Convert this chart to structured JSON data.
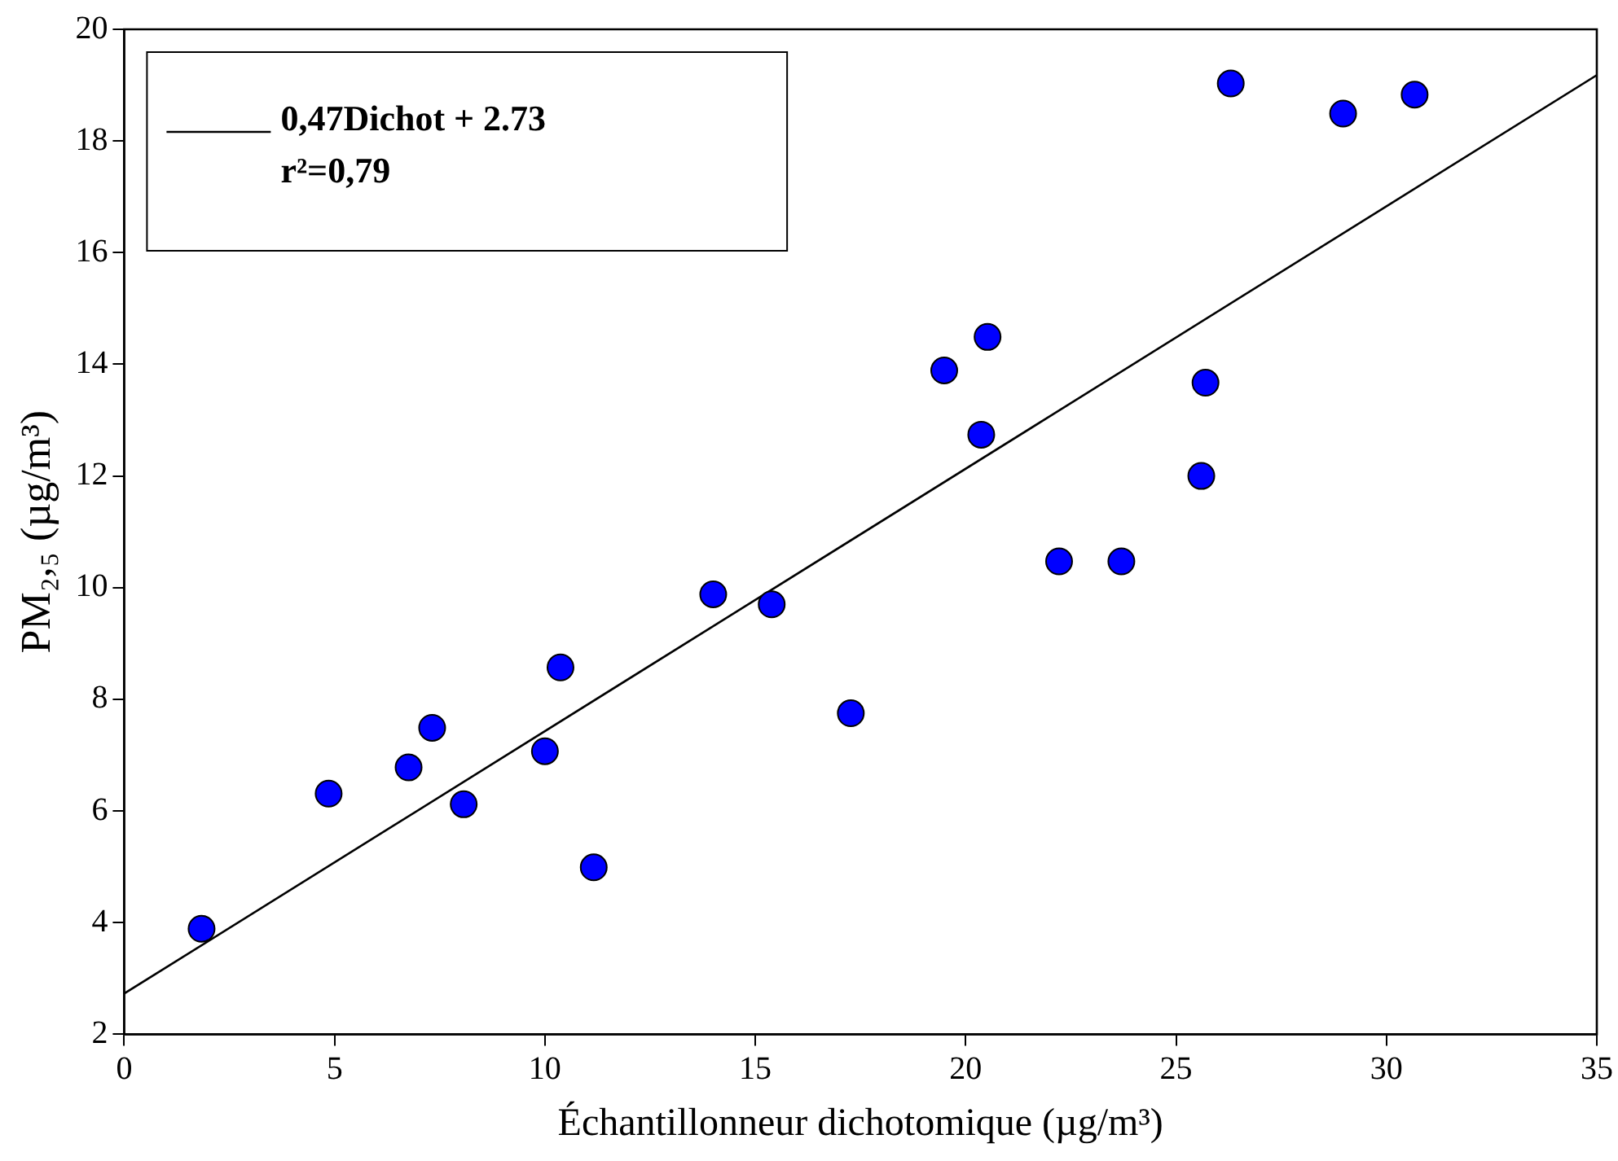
{
  "chart_data": {
    "type": "scatter",
    "xlabel": "Échantillonneur dichotomique (µg/m³)",
    "ylabel": "PM₂,₅ (µg/m³)",
    "xlim": [
      0,
      35
    ],
    "xticks": [
      0,
      5,
      10,
      15,
      20,
      25,
      30,
      35
    ],
    "ylim": [
      2,
      20
    ],
    "yticks": [
      2,
      4,
      6,
      8,
      10,
      12,
      14,
      16,
      18,
      20
    ],
    "grid": false,
    "legend": "top left",
    "marker": "circle",
    "annotations": [
      "r²=0,79"
    ],
    "series": [
      {
        "type": "scatter",
        "color": "#0000ff",
        "x": [
          1.84,
          4.86,
          6.76,
          7.32,
          8.07,
          10.0,
          10.37,
          11.16,
          14.0,
          15.39,
          17.27,
          19.49,
          20.37,
          20.52,
          22.22,
          23.7,
          25.6,
          25.7,
          26.3,
          28.97,
          30.67
        ],
        "values": [
          3.89,
          6.31,
          6.78,
          7.49,
          6.12,
          7.07,
          8.57,
          4.99,
          9.88,
          9.7,
          7.75,
          13.89,
          12.74,
          14.49,
          10.47,
          10.47,
          12.0,
          13.67,
          19.03,
          18.49,
          18.83
        ]
      },
      {
        "type": "line",
        "name": "0,47Dichot + 2.73",
        "color": "#000000",
        "marker": "none",
        "x": [
          0,
          35
        ],
        "values": [
          2.73,
          19.18
        ]
      }
    ]
  }
}
